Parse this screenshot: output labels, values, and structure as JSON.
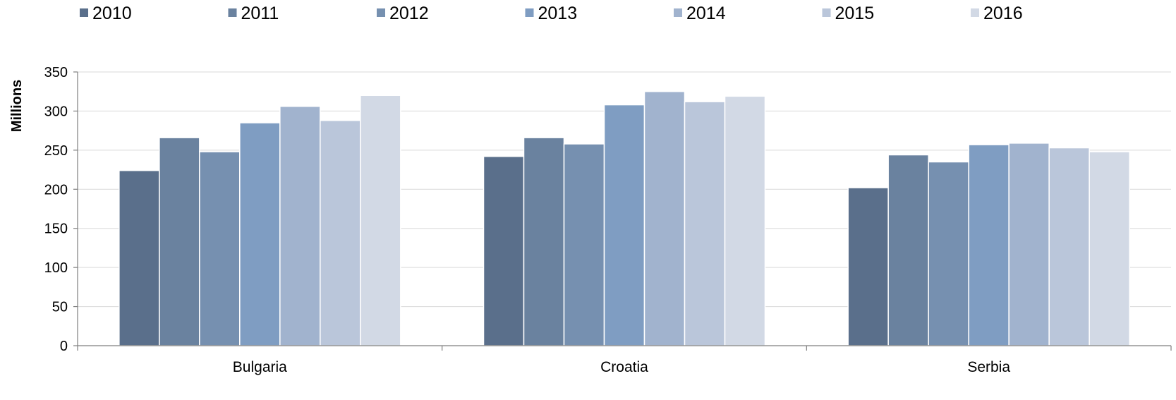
{
  "chart_data": {
    "type": "bar",
    "title": "",
    "xlabel": "",
    "ylabel": "Millions",
    "ylim": [
      0,
      350
    ],
    "yticks": [
      0,
      50,
      100,
      150,
      200,
      250,
      300,
      350
    ],
    "grid": true,
    "legend_position": "top",
    "categories": [
      "Bulgaria",
      "Croatia",
      "Serbia"
    ],
    "series": [
      {
        "name": "2010",
        "color": "#5a6f8b",
        "values": [
          224,
          242,
          202
        ]
      },
      {
        "name": "2011",
        "color": "#6a829f",
        "values": [
          266,
          266,
          244
        ]
      },
      {
        "name": "2012",
        "color": "#7690b0",
        "values": [
          248,
          258,
          235
        ]
      },
      {
        "name": "2013",
        "color": "#7f9dc2",
        "values": [
          285,
          308,
          257
        ]
      },
      {
        "name": "2014",
        "color": "#a1b3ce",
        "values": [
          306,
          325,
          259
        ]
      },
      {
        "name": "2015",
        "color": "#bac6da",
        "values": [
          288,
          312,
          253
        ]
      },
      {
        "name": "2016",
        "color": "#d2d9e5",
        "values": [
          320,
          319,
          248
        ]
      }
    ]
  }
}
